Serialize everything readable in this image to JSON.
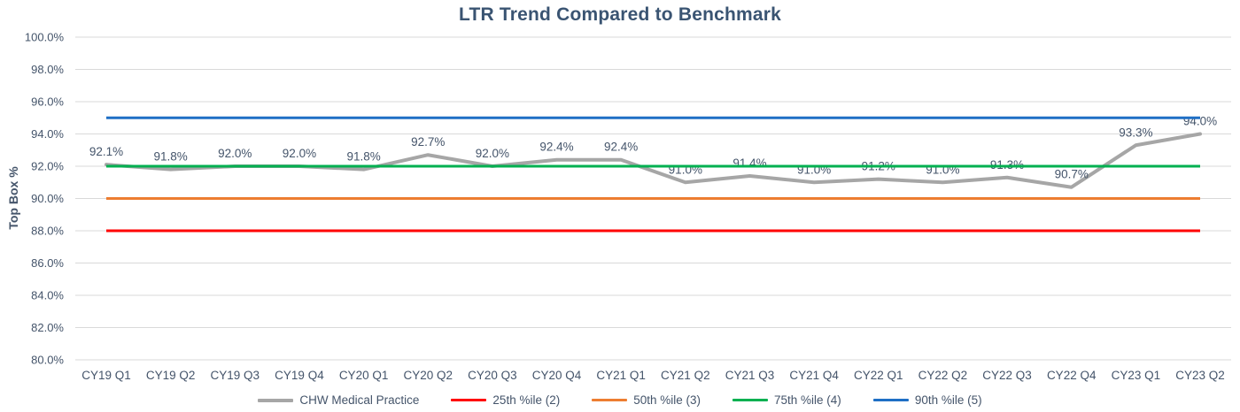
{
  "chart_data": {
    "type": "line",
    "title": "LTR Trend Compared to Benchmark",
    "ylabel": "Top Box %",
    "xlabel": "",
    "ylim": [
      80,
      100
    ],
    "ytick_step": 2,
    "ytick_labels": [
      "100.0%",
      "98.0%",
      "96.0%",
      "94.0%",
      "92.0%",
      "90.0%",
      "88.0%",
      "86.0%",
      "84.0%",
      "82.0%",
      "80.0%"
    ],
    "grid": true,
    "legend_position": "bottom",
    "categories": [
      "CY19 Q1",
      "CY19 Q2",
      "CY19 Q3",
      "CY19 Q4",
      "CY20 Q1",
      "CY20 Q2",
      "CY20 Q3",
      "CY20 Q4",
      "CY21 Q1",
      "CY21 Q2",
      "CY21 Q3",
      "CY21 Q4",
      "CY22 Q1",
      "CY22 Q2",
      "CY22 Q3",
      "CY22 Q4",
      "CY23 Q1",
      "CY23 Q2"
    ],
    "series": [
      {
        "name": "CHW Medical Practice",
        "kind": "line",
        "color": "#A6A6A6",
        "line_width": 4,
        "show_data_labels": true,
        "values": [
          92.1,
          91.8,
          92.0,
          92.0,
          91.8,
          92.7,
          92.0,
          92.4,
          92.4,
          91.0,
          91.4,
          91.0,
          91.2,
          91.0,
          91.3,
          90.7,
          93.3,
          94.0
        ],
        "data_labels": [
          "92.1%",
          "91.8%",
          "92.0%",
          "92.0%",
          "91.8%",
          "92.7%",
          "92.0%",
          "92.4%",
          "92.4%",
          "91.0%",
          "91.4%",
          "91.0%",
          "91.2%",
          "91.0%",
          "91.3%",
          "90.7%",
          "93.3%",
          "94.0%"
        ]
      },
      {
        "name": "25th %ile (2)",
        "kind": "constant",
        "color": "#FF0000",
        "line_width": 3,
        "value": 88.0
      },
      {
        "name": "50th %ile (3)",
        "kind": "constant",
        "color": "#ED7D31",
        "line_width": 3,
        "value": 90.0
      },
      {
        "name": "75th %ile (4)",
        "kind": "constant",
        "color": "#00B050",
        "line_width": 3,
        "value": 92.0
      },
      {
        "name": "90th %ile (5)",
        "kind": "constant",
        "color": "#1F6FC5",
        "line_width": 3,
        "value": 95.0
      }
    ]
  },
  "colors": {
    "title_text": "#3A5472",
    "axis_text": "#44546A",
    "data_label_text": "#44546A",
    "gridline": "#D9D9D9",
    "background": "#FFFFFF"
  }
}
